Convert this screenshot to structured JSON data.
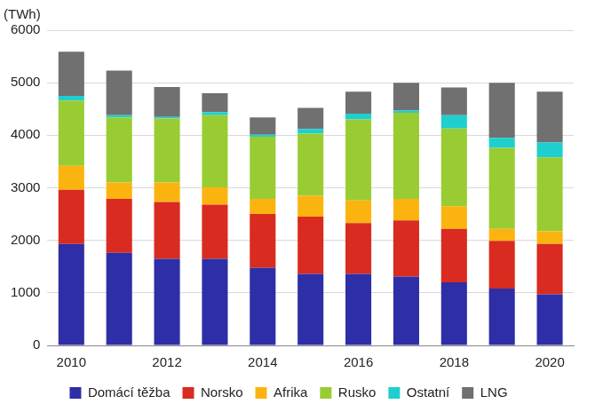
{
  "chart_data": {
    "type": "bar",
    "stacked": true,
    "y_label": "(TWh)",
    "categories": [
      "2010",
      null,
      "2012",
      null,
      "2014",
      null,
      "2016",
      null,
      "2018",
      null,
      "2020"
    ],
    "series": [
      {
        "name": "Domácí těžba",
        "color": "#2e2ea6",
        "values": [
          1930,
          1760,
          1650,
          1650,
          1480,
          1360,
          1360,
          1310,
          1200,
          1080,
          970
        ]
      },
      {
        "name": "Norsko",
        "color": "#d92b1f",
        "values": [
          1030,
          1030,
          1080,
          1030,
          1020,
          1090,
          970,
          1070,
          1020,
          910,
          960
        ]
      },
      {
        "name": "Afrika",
        "color": "#fbb40f",
        "values": [
          460,
          310,
          370,
          330,
          290,
          400,
          430,
          410,
          430,
          230,
          240
        ]
      },
      {
        "name": "Rusko",
        "color": "#99cc33",
        "values": [
          1240,
          1240,
          1220,
          1370,
          1180,
          1180,
          1540,
          1640,
          1480,
          1540,
          1410
        ]
      },
      {
        "name": "Ostatní",
        "color": "#1fcfcf",
        "values": [
          90,
          40,
          30,
          60,
          40,
          90,
          110,
          40,
          250,
          190,
          280
        ]
      },
      {
        "name": "LNG",
        "color": "#707070",
        "values": [
          840,
          850,
          570,
          360,
          330,
          400,
          420,
          530,
          530,
          1050,
          970
        ]
      }
    ],
    "ylim": [
      0,
      6000
    ],
    "yticks": [
      0,
      1000,
      2000,
      3000,
      4000,
      5000,
      6000
    ],
    "grid": true,
    "legend": "bottom"
  }
}
